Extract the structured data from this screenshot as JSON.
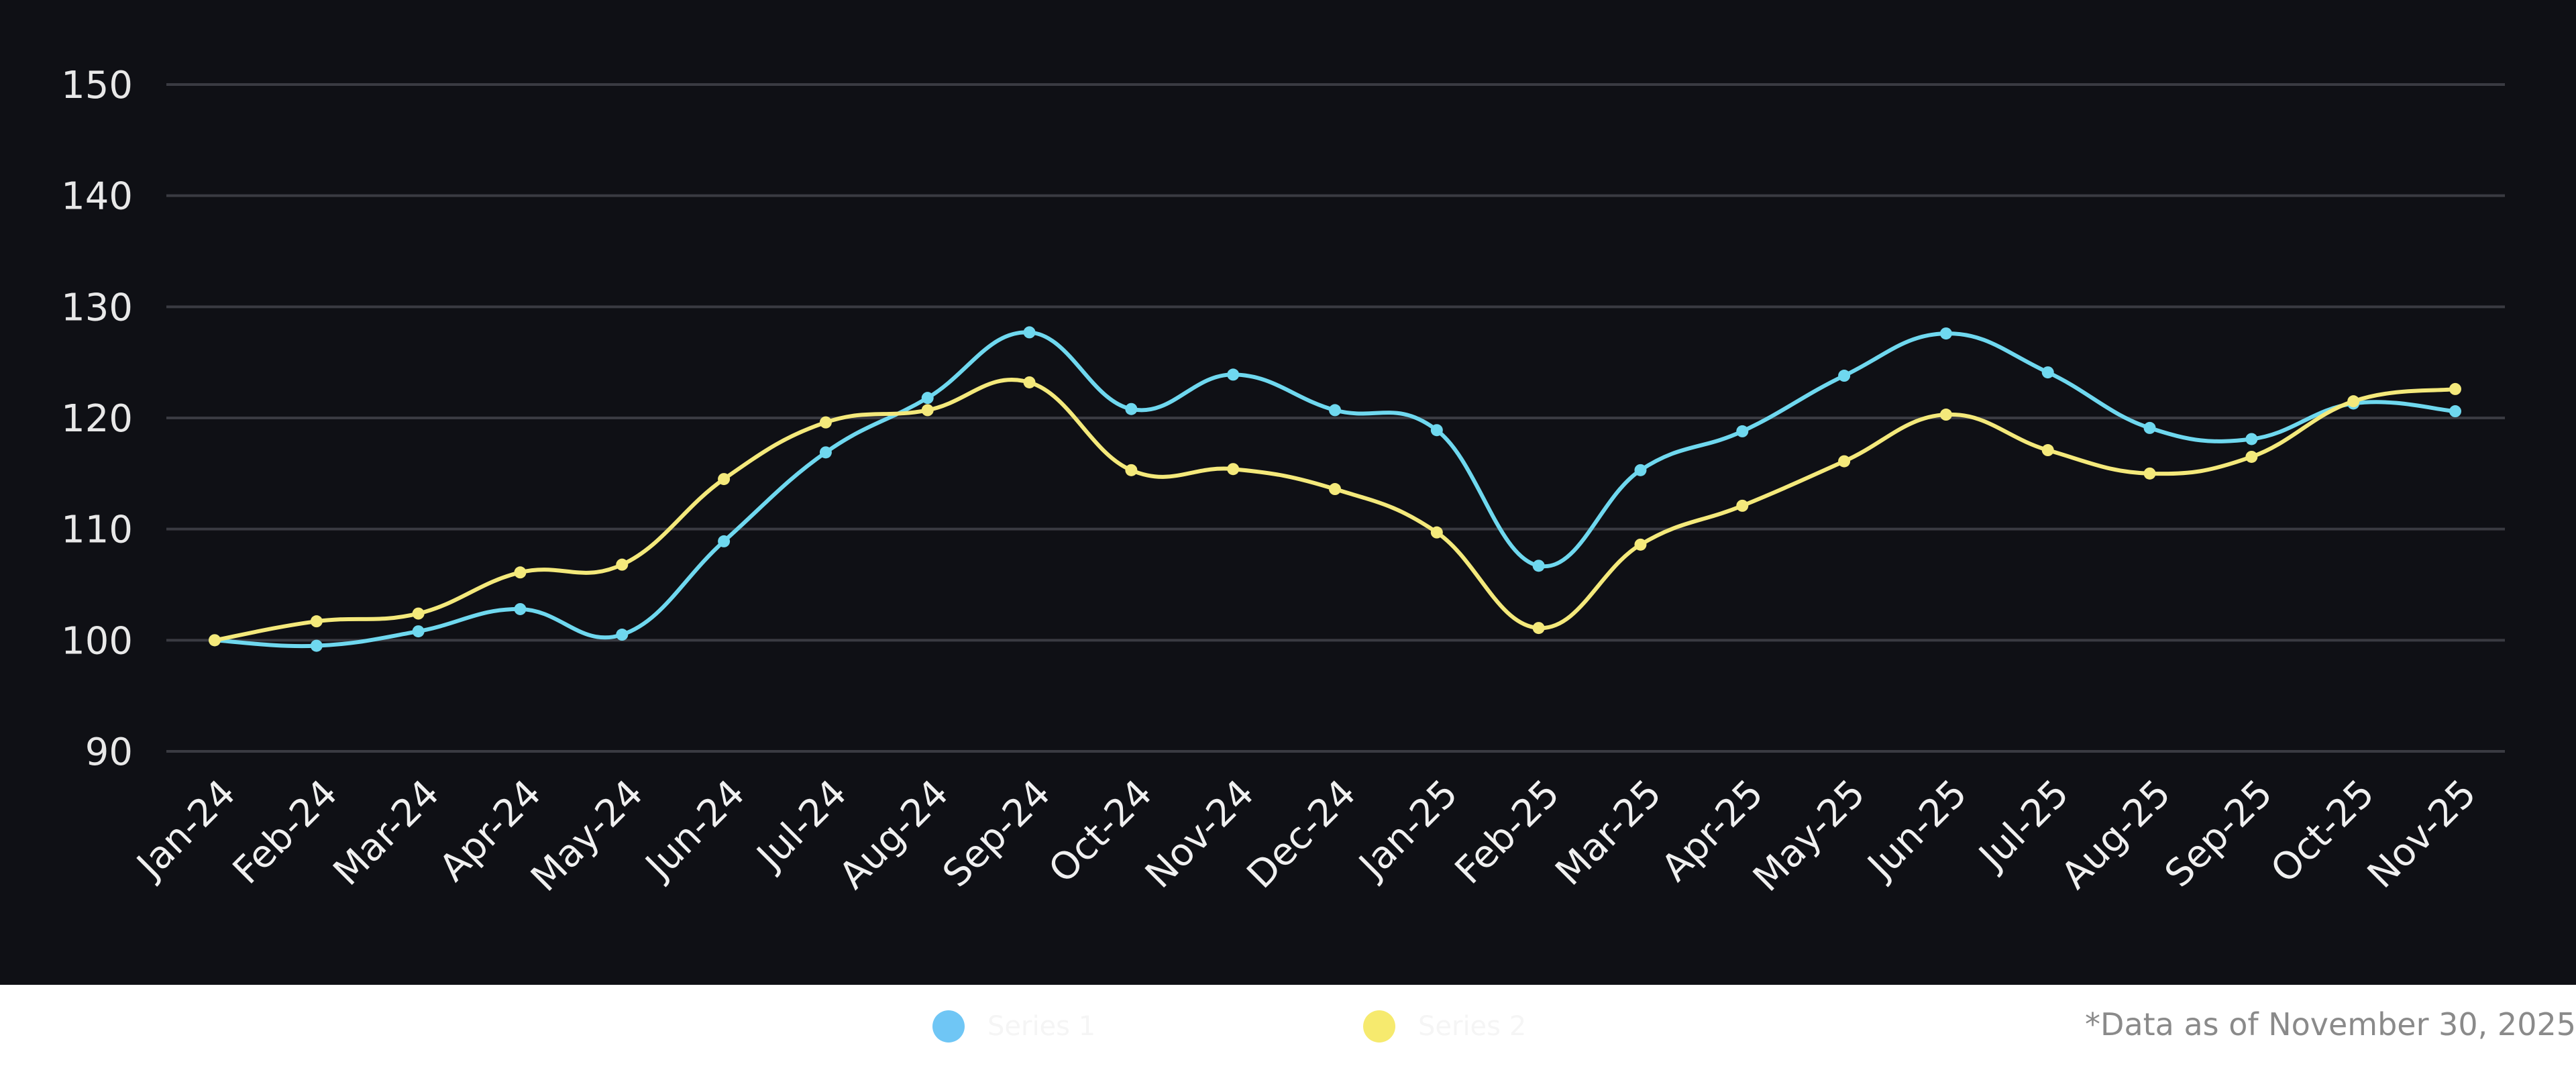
{
  "chart_data": {
    "type": "line",
    "categories": [
      "Jan-24",
      "Feb-24",
      "Mar-24",
      "Apr-24",
      "May-24",
      "Jun-24",
      "Jul-24",
      "Aug-24",
      "Sep-24",
      "Oct-24",
      "Nov-24",
      "Dec-24",
      "Jan-25",
      "Feb-25",
      "Mar-25",
      "Apr-25",
      "May-25",
      "Jun-25",
      "Jul-25",
      "Aug-25",
      "Sep-25",
      "Oct-25",
      "Nov-25"
    ],
    "series": [
      {
        "name": "Series 1",
        "color": "#6fd8ef",
        "values": [
          100,
          99.5,
          100.8,
          102.8,
          100.5,
          108.9,
          116.9,
          121.8,
          127.7,
          120.8,
          123.9,
          120.7,
          118.9,
          106.7,
          115.3,
          118.8,
          123.8,
          127.6,
          124.1,
          119.1,
          118.1,
          121.3,
          120.6
        ]
      },
      {
        "name": "Series 2",
        "color": "#f4e97b",
        "values": [
          100,
          101.7,
          102.4,
          106.1,
          106.8,
          114.5,
          119.6,
          120.7,
          123.2,
          115.3,
          115.4,
          113.6,
          109.7,
          101.1,
          108.6,
          112.1,
          116.1,
          120.3,
          117.1,
          115.0,
          116.5,
          121.5,
          122.6
        ]
      }
    ],
    "yticks": [
      90,
      100,
      110,
      120,
      130,
      140,
      150
    ],
    "ylim": [
      90,
      150
    ],
    "grid": true,
    "title": "",
    "xlabel": "",
    "ylabel": ""
  },
  "legend": {
    "items": [
      {
        "label": "Series 1",
        "color": "#6fc6f5"
      },
      {
        "label": "Series 2",
        "color": "#f6ea6e"
      }
    ]
  },
  "footnote": "*Data as of November 30, 2025"
}
